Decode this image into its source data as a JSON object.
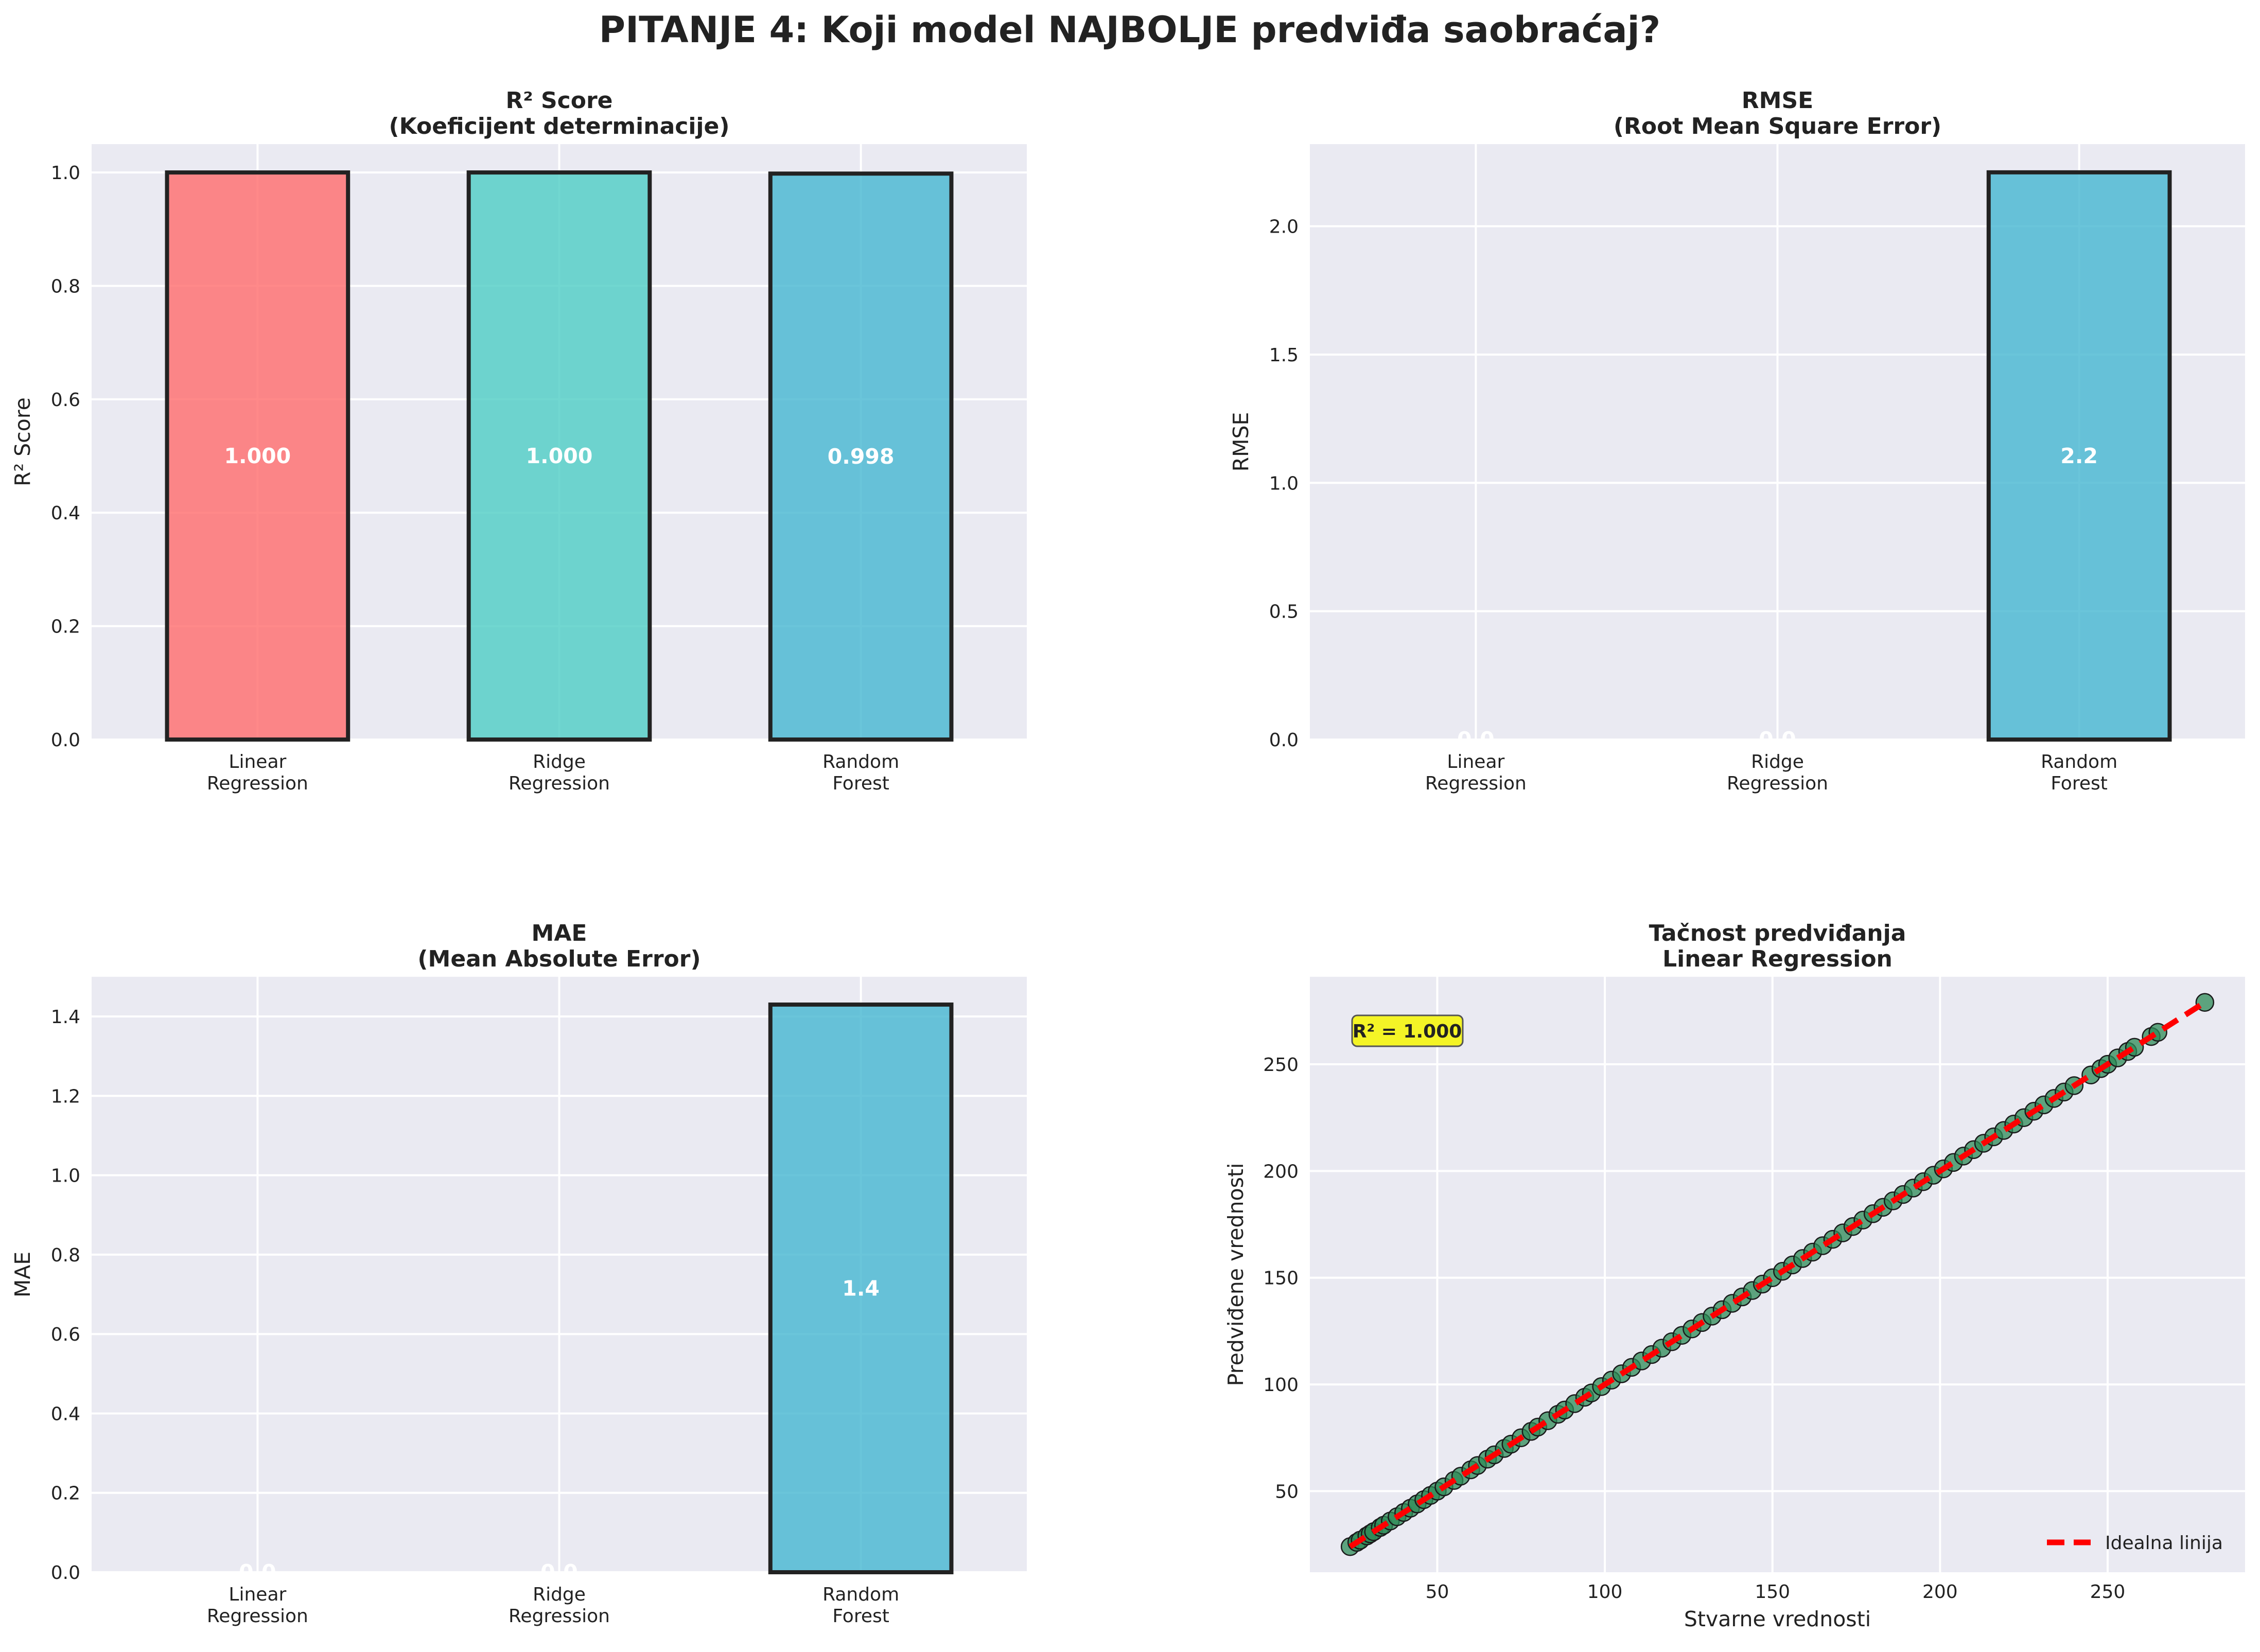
{
  "suptitle": "PITANJE 4: Koji model NAJBOLJE predviđa saobraćaj?",
  "colors": {
    "linear": "#ff6b6b",
    "ridge": "#4ecdc4",
    "forest": "#45b7d1",
    "scatter": "#2e8b57",
    "ideal_line": "#ff0000",
    "r2_box": "#ffff00"
  },
  "chart_data": [
    {
      "type": "bar",
      "title": "R² Score\n(Koeficijent determinacije)",
      "ylabel": "R² Score",
      "categories": [
        "Linear\nRegression",
        "Ridge\nRegression",
        "Random\nForest"
      ],
      "values": [
        1.0,
        1.0,
        0.998
      ],
      "value_labels": [
        "1.000",
        "1.000",
        "0.998"
      ],
      "ylim": [
        0,
        1.05
      ],
      "yticks": [
        0.0,
        0.2,
        0.4,
        0.6,
        0.8,
        1.0
      ],
      "ytick_labels": [
        "0.0",
        "0.2",
        "0.4",
        "0.6",
        "0.8",
        "1.0"
      ]
    },
    {
      "type": "bar",
      "title": "RMSE\n(Root Mean Square Error)",
      "ylabel": "RMSE",
      "categories": [
        "Linear\nRegression",
        "Ridge\nRegression",
        "Random\nForest"
      ],
      "values": [
        0.0,
        0.0,
        2.21
      ],
      "value_labels": [
        "0.0",
        "0.0",
        "2.2"
      ],
      "ylim": [
        0,
        2.32
      ],
      "yticks": [
        0.0,
        0.5,
        1.0,
        1.5,
        2.0
      ],
      "ytick_labels": [
        "0.0",
        "0.5",
        "1.0",
        "1.5",
        "2.0"
      ]
    },
    {
      "type": "bar",
      "title": "MAE\n(Mean Absolute Error)",
      "ylabel": "MAE",
      "categories": [
        "Linear\nRegression",
        "Ridge\nRegression",
        "Random\nForest"
      ],
      "values": [
        0.0,
        0.0,
        1.43
      ],
      "value_labels": [
        "0.0",
        "0.0",
        "1.4"
      ],
      "ylim": [
        0,
        1.5
      ],
      "yticks": [
        0.0,
        0.2,
        0.4,
        0.6,
        0.8,
        1.0,
        1.2,
        1.4
      ],
      "ytick_labels": [
        "0.0",
        "0.2",
        "0.4",
        "0.6",
        "0.8",
        "1.0",
        "1.2",
        "1.4"
      ]
    },
    {
      "type": "scatter",
      "title": "Tačnost predviđanja\nLinear Regression",
      "xlabel": "Stvarne vrednosti",
      "ylabel": "Predviđene vrednosti",
      "xlim": [
        12,
        291
      ],
      "ylim": [
        12,
        291
      ],
      "xticks": [
        50,
        100,
        150,
        200,
        250
      ],
      "yticks": [
        50,
        100,
        150,
        200,
        250
      ],
      "annotation": "R² = 1.000",
      "legend": {
        "label": "Idealna linija",
        "position": "lower-right"
      },
      "ideal_line": {
        "x": [
          24,
          279
        ],
        "y": [
          24,
          279
        ]
      },
      "points": {
        "x": [
          24,
          26,
          27,
          29,
          30,
          31,
          33,
          34,
          36,
          38,
          40,
          42,
          44,
          46,
          48,
          50,
          52,
          55,
          57,
          60,
          62,
          65,
          67,
          70,
          72,
          75,
          78,
          80,
          83,
          86,
          88,
          91,
          94,
          96,
          99,
          102,
          105,
          108,
          111,
          114,
          117,
          120,
          123,
          126,
          129,
          132,
          135,
          138,
          141,
          144,
          147,
          150,
          153,
          156,
          159,
          162,
          165,
          168,
          171,
          174,
          177,
          180,
          183,
          186,
          189,
          192,
          195,
          198,
          201,
          204,
          207,
          210,
          213,
          216,
          219,
          222,
          225,
          228,
          231,
          234,
          237,
          240,
          245,
          248,
          250,
          253,
          256,
          258,
          263,
          265,
          279
        ],
        "y": [
          24,
          26,
          27,
          29,
          30,
          31,
          33,
          34,
          36,
          38,
          40,
          42,
          44,
          46,
          48,
          50,
          52,
          55,
          57,
          60,
          62,
          65,
          67,
          70,
          72,
          75,
          78,
          80,
          83,
          86,
          88,
          91,
          94,
          96,
          99,
          102,
          105,
          108,
          111,
          114,
          117,
          120,
          123,
          126,
          129,
          132,
          135,
          138,
          141,
          144,
          147,
          150,
          153,
          156,
          159,
          162,
          165,
          168,
          171,
          174,
          177,
          180,
          183,
          186,
          189,
          192,
          195,
          198,
          201,
          204,
          207,
          210,
          213,
          216,
          219,
          222,
          225,
          228,
          231,
          234,
          237,
          240,
          245,
          248,
          250,
          253,
          256,
          258,
          263,
          265,
          279
        ]
      }
    }
  ]
}
